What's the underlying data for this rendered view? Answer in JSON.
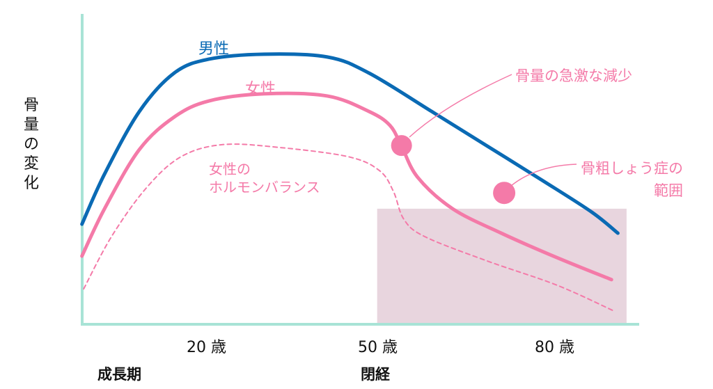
{
  "chart_data": {
    "type": "line",
    "title": "",
    "ylabel": "骨量の変化",
    "xlabel": "",
    "xlim": [
      -1.8,
      94
    ],
    "ylim": [
      0,
      100
    ],
    "x_ticks": [
      {
        "value": 20,
        "label": "20 歳"
      },
      {
        "value": 50,
        "label": "50 歳"
      },
      {
        "value": 80,
        "label": "80 歳"
      }
    ],
    "x_annotations": [
      {
        "label": "成長期"
      },
      {
        "label": "閉経"
      }
    ],
    "series": [
      {
        "name": "男性",
        "color": "#0a6ab4",
        "style": "solid",
        "points": [
          [
            -1.6,
            32.1
          ],
          [
            2.3,
            48.3
          ],
          [
            8.3,
            68.5
          ],
          [
            14.3,
            80.9
          ],
          [
            20.3,
            85.4
          ],
          [
            29.9,
            87
          ],
          [
            40.7,
            86.1
          ],
          [
            47.9,
            80.9
          ],
          [
            58.7,
            68.5
          ],
          [
            68.3,
            57.3
          ],
          [
            77.9,
            46.1
          ],
          [
            86.3,
            36
          ],
          [
            90.8,
            29.2
          ]
        ]
      },
      {
        "name": "女性",
        "color": "#f47aa8",
        "style": "solid",
        "points": [
          [
            -1.6,
            21.8
          ],
          [
            2.3,
            37.1
          ],
          [
            8.3,
            56.2
          ],
          [
            14.3,
            66.7
          ],
          [
            20.3,
            71.9
          ],
          [
            29.9,
            74.2
          ],
          [
            40.7,
            73.5
          ],
          [
            47.9,
            68.5
          ],
          [
            51.5,
            64
          ],
          [
            53.5,
            57.3
          ],
          [
            56.3,
            47.2
          ],
          [
            62.3,
            37.1
          ],
          [
            70.7,
            29.2
          ],
          [
            80.3,
            21.3
          ],
          [
            89.7,
            14.2
          ]
        ]
      },
      {
        "name": "女性のホルモンバランス",
        "color": "#f47aa8",
        "style": "dashed",
        "points": [
          [
            -1.3,
            11.2
          ],
          [
            3.5,
            28.1
          ],
          [
            9.5,
            43.8
          ],
          [
            15.5,
            53.9
          ],
          [
            22.7,
            57.8
          ],
          [
            32.3,
            56.9
          ],
          [
            44.3,
            53.9
          ],
          [
            49.7,
            49.4
          ],
          [
            52.1,
            42.7
          ],
          [
            53.9,
            33.7
          ],
          [
            57.5,
            28.1
          ],
          [
            68.3,
            20.2
          ],
          [
            80.3,
            12.4
          ],
          [
            90.2,
            4
          ]
        ]
      }
    ],
    "region": {
      "label": "骨粗しょう症の範囲",
      "x": [
        49.3,
        92.3
      ],
      "y": [
        0,
        37.1
      ],
      "color": "#e8d5de"
    },
    "markers": [
      {
        "label": "骨量の急激な減少",
        "x": 53.5,
        "y": 57.5,
        "color": "#f47aa8"
      },
      {
        "label": "骨粗しょう症の範囲",
        "x": 71.2,
        "y": 42.2,
        "color": "#f47aa8"
      }
    ]
  },
  "labels": {
    "male": "男性",
    "female": "女性",
    "hormone_line1": "女性の",
    "hormone_line2": "ホルモンバランス",
    "rapid_decrease": "骨量の急激な減少",
    "osteo_line1": "骨粗しょう症の",
    "osteo_line2": "範囲",
    "growth": "成長期",
    "menopause": "閉経",
    "y_chars": [
      "骨",
      "量",
      "の",
      "変",
      "化"
    ]
  },
  "colors": {
    "axis": "#a8e3d6",
    "male": "#0a6ab4",
    "female": "#f47aa8",
    "region": "#e8d5de",
    "highlight": "#ffff00"
  }
}
